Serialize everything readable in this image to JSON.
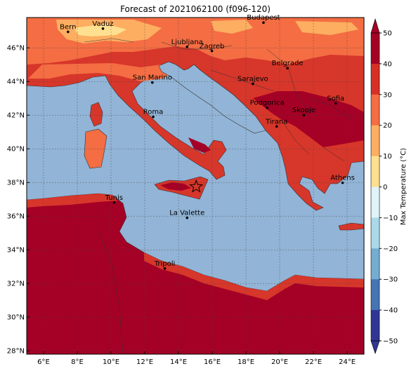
{
  "title": "Forecast of 2021062100 (f096-120)",
  "map": {
    "lon_range": [
      5,
      25
    ],
    "lat_range": [
      27.8,
      47.8
    ],
    "x_ticks": [
      "6°E",
      "8°E",
      "10°E",
      "12°E",
      "14°E",
      "16°E",
      "18°E",
      "20°E",
      "22°E",
      "24°E"
    ],
    "y_ticks": [
      "28°N",
      "30°N",
      "32°N",
      "34°N",
      "36°N",
      "38°N",
      "40°N",
      "42°N",
      "44°N",
      "46°N"
    ],
    "grid": true,
    "sea_color": "#92b4d6",
    "land_colors": {
      "hot": "#d7362a",
      "very_hot": "#a50026",
      "warm": "#f46d43",
      "mild": "#fdae61",
      "pale": "#fee090"
    }
  },
  "cities": [
    {
      "name": "Bern",
      "lon": 7.45,
      "lat": 46.95
    },
    {
      "name": "Vaduz",
      "lon": 9.52,
      "lat": 47.14
    },
    {
      "name": "Budapest",
      "lon": 19.04,
      "lat": 47.5
    },
    {
      "name": "Ljubljana",
      "lon": 14.51,
      "lat": 46.06
    },
    {
      "name": "Zagreb",
      "lon": 15.98,
      "lat": 45.81
    },
    {
      "name": "Belgrade",
      "lon": 20.46,
      "lat": 44.79
    },
    {
      "name": "San Marino",
      "lon": 12.45,
      "lat": 43.94
    },
    {
      "name": "Sarajevo",
      "lon": 18.41,
      "lat": 43.86
    },
    {
      "name": "Podgorica",
      "lon": 19.26,
      "lat": 42.44
    },
    {
      "name": "Sofia",
      "lon": 23.32,
      "lat": 42.7
    },
    {
      "name": "Skopje",
      "lon": 21.43,
      "lat": 42.0
    },
    {
      "name": "Roma",
      "lon": 12.5,
      "lat": 41.9
    },
    {
      "name": "Tirana",
      "lon": 19.82,
      "lat": 41.33
    },
    {
      "name": "Athens",
      "lon": 23.73,
      "lat": 37.98
    },
    {
      "name": "Tunis",
      "lon": 10.18,
      "lat": 36.81
    },
    {
      "name": "La Valette",
      "lon": 14.51,
      "lat": 35.9
    },
    {
      "name": "Tripoli",
      "lon": 13.19,
      "lat": 32.89
    }
  ],
  "star": {
    "lon": 15.05,
    "lat": 37.75
  },
  "colorbar": {
    "label": "Max Temperature (°C)",
    "ticks": [
      "50",
      "40",
      "30",
      "20",
      "10",
      "0",
      "−10",
      "−20",
      "−30",
      "−40",
      "−50"
    ],
    "colors": [
      "#a50026",
      "#d73027",
      "#f46d43",
      "#fdae61",
      "#fee090",
      "#e0f3f8",
      "#abd9e9",
      "#74add1",
      "#4575b4",
      "#313695"
    ]
  }
}
